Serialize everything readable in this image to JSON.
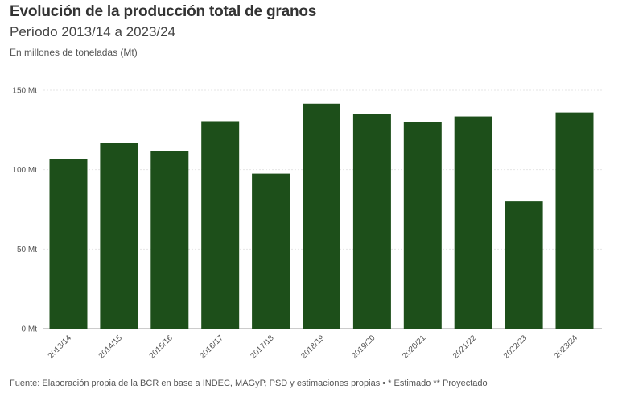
{
  "chart_data": {
    "type": "bar",
    "title": "Evolución de la producción total de granos",
    "subtitle": "Período 2013/14 a 2023/24",
    "unit_note": "En millones de toneladas (Mt)",
    "categories": [
      "2013/14",
      "2014/15",
      "2015/16",
      "2016/17",
      "2017/18",
      "2018/19",
      "2019/20",
      "2020/21",
      "2021/22",
      "2022/23",
      "2023/24"
    ],
    "values": [
      106.5,
      117,
      111.5,
      130.5,
      97.5,
      141.5,
      135,
      130,
      133.5,
      80,
      136
    ],
    "ylim": [
      0,
      150
    ],
    "yticks": [
      0,
      50,
      100,
      150
    ],
    "ytick_labels": [
      "0 Mt",
      "50 Mt",
      "100 Mt",
      "150 Mt"
    ],
    "xlabel": "",
    "ylabel": "",
    "bar_color": "#1d4f1a",
    "grid": true,
    "source": "Fuente: Elaboración propia de la BCR en base a INDEC, MAGyP, PSD y estimaciones propias • * Estimado ** Proyectado"
  }
}
